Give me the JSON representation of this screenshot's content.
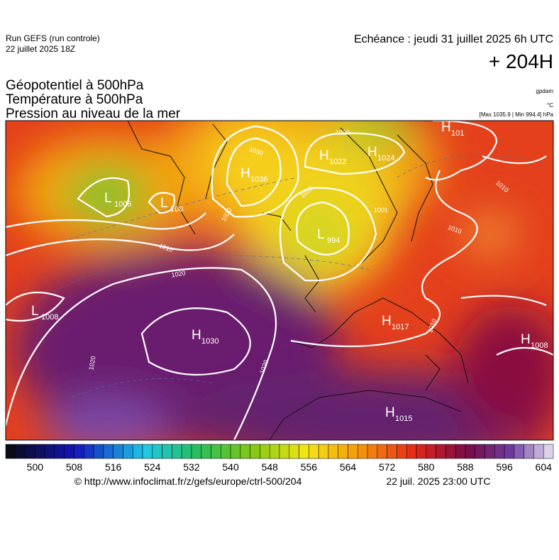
{
  "header": {
    "run": "Run GEFS (run controle)",
    "run_date": "22 juillet 2025 18Z",
    "echeance": "Echéance : jeudi 31 juillet 2025 6h UTC",
    "lead": "+ 204H",
    "fields": [
      "Géopotentiel à 500hPa",
      "Température à 500hPa",
      "Pression au niveau de la mer"
    ],
    "units": [
      "gpdam",
      "°C"
    ],
    "extremes": "[Max 1035.9 | Min 994.4] hPa"
  },
  "map": {
    "centers": [
      {
        "type": "L",
        "pressure": 1008
      },
      {
        "type": "H",
        "pressure": 1030
      },
      {
        "type": "L",
        "pressure": 1006
      },
      {
        "type": "L",
        "pressure": 100
      },
      {
        "type": "H",
        "pressure": 1036
      },
      {
        "type": "H",
        "pressure": 1022
      },
      {
        "type": "H",
        "pressure": 1024
      },
      {
        "type": "H",
        "pressure": 101
      },
      {
        "type": "L",
        "pressure": 994
      },
      {
        "type": "H",
        "pressure": 1017
      },
      {
        "type": "H",
        "pressure": 1008
      },
      {
        "type": "H",
        "pressure": 1015
      }
    ],
    "isobar_labels": [
      1020,
      1030,
      1020,
      1010,
      1020,
      1020,
      1020,
      1010,
      1010,
      1010,
      1001,
      1010
    ]
  },
  "colorbar": {
    "lim": [
      494,
      606
    ],
    "step": 2,
    "ticks": [
      500,
      508,
      516,
      524,
      532,
      540,
      548,
      556,
      564,
      572,
      580,
      588,
      596,
      604
    ]
  },
  "footer": {
    "source": "© http://www.infoclimat.fr/z/gefs/europe/ctrl-500/204",
    "time": "22 juil. 2025 23:00 UTC"
  }
}
